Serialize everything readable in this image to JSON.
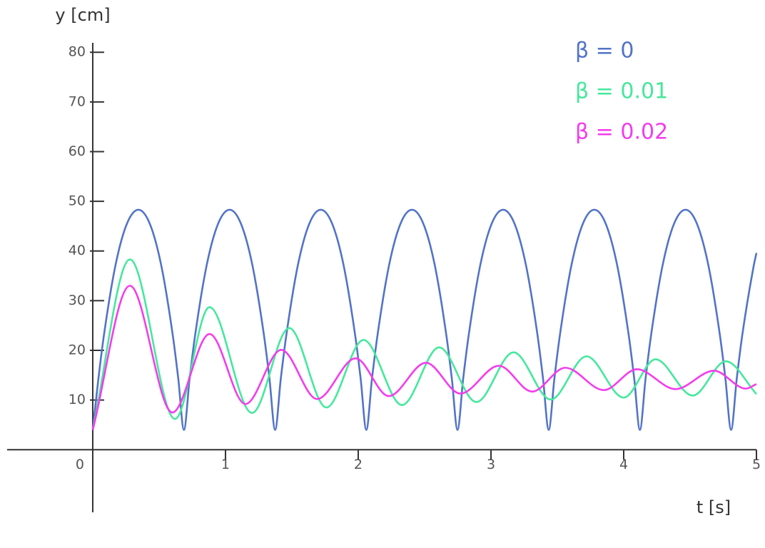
{
  "chart_data": {
    "type": "line",
    "x_label": "t [s]",
    "y_label": "y [cm]",
    "xlim": [
      -0.645,
      5
    ],
    "ylim": [
      -12.6,
      81.9
    ],
    "xticks": [
      0,
      1,
      2,
      3,
      4,
      5
    ],
    "yticks": [
      10,
      20,
      30,
      40,
      50,
      60,
      70,
      80
    ],
    "grid": false,
    "legend": "upper right",
    "series": [
      {
        "name": "β = 0",
        "color": "#5273c8",
        "x": [
          0,
          0.043,
          0.086,
          0.172,
          0.258,
          0.344,
          0.429,
          0.515,
          0.601,
          0.644,
          0.687,
          0.73,
          0.773,
          0.859,
          0.945,
          1.031,
          1.116,
          1.202,
          1.288,
          1.331,
          1.374,
          1.417,
          1.46,
          1.546,
          1.632,
          1.718,
          1.803,
          1.889,
          1.975,
          2.018,
          2.061,
          2.104,
          2.147,
          2.233,
          2.319,
          2.405,
          2.49,
          2.576,
          2.662,
          2.705,
          2.748,
          2.791,
          2.834,
          2.92,
          3.006,
          3.092,
          3.177,
          3.263,
          3.349,
          3.392,
          3.435,
          3.478,
          3.521,
          3.607,
          3.693,
          3.779,
          3.864,
          3.95,
          4.036,
          4.079,
          4.122,
          4.165,
          4.208,
          4.294,
          4.38,
          4.466,
          4.551,
          4.637,
          4.723,
          4.766,
          4.809,
          4.852,
          4.895,
          4.981,
          5.0
        ],
        "values": [
          4,
          14.38,
          23.38,
          37.23,
          45.53,
          48.3,
          45.53,
          37.23,
          23.38,
          14.38,
          4,
          14.38,
          23.38,
          37.23,
          45.53,
          48.3,
          45.53,
          37.23,
          23.38,
          14.38,
          4,
          14.38,
          23.38,
          37.23,
          45.53,
          48.3,
          45.53,
          37.23,
          23.38,
          14.38,
          4,
          14.38,
          23.38,
          37.23,
          45.53,
          48.3,
          45.53,
          37.23,
          23.38,
          14.38,
          4,
          14.38,
          23.38,
          37.23,
          45.53,
          48.3,
          45.53,
          37.23,
          23.38,
          14.38,
          4,
          14.38,
          23.38,
          37.23,
          45.53,
          48.3,
          45.53,
          37.23,
          23.38,
          14.38,
          4,
          14.38,
          23.38,
          37.23,
          45.53,
          48.3,
          45.53,
          37.23,
          23.38,
          14.38,
          4,
          14.38,
          23.38,
          37.23,
          39.6
        ]
      },
      {
        "name": "β = 0.01",
        "color": "#44e89c",
        "x": [
          0,
          0.28,
          0.62,
          0.88,
          1.2,
          1.48,
          1.76,
          2.04,
          2.33,
          2.61,
          2.89,
          3.17,
          3.45,
          3.72,
          4.0,
          4.24,
          4.52,
          4.77,
          5.0
        ],
        "values": [
          4,
          38.3,
          6.2,
          28.7,
          7.4,
          24.5,
          8.5,
          22.1,
          9.0,
          20.6,
          9.6,
          19.6,
          10.1,
          18.8,
          10.5,
          18.2,
          10.9,
          17.8,
          11.2
        ]
      },
      {
        "name": "β = 0.02",
        "color": "#f43cec",
        "x": [
          0,
          0.28,
          0.6,
          0.88,
          1.15,
          1.42,
          1.69,
          1.98,
          2.23,
          2.51,
          2.77,
          3.06,
          3.31,
          3.56,
          3.85,
          4.1,
          4.39,
          4.68,
          4.92,
          5.0
        ],
        "values": [
          4,
          33.0,
          7.5,
          23.3,
          9.2,
          20.1,
          10.2,
          18.4,
          10.8,
          17.5,
          11.3,
          16.9,
          11.7,
          16.5,
          12.0,
          16.2,
          12.2,
          15.9,
          12.3,
          13.2
        ]
      }
    ]
  }
}
